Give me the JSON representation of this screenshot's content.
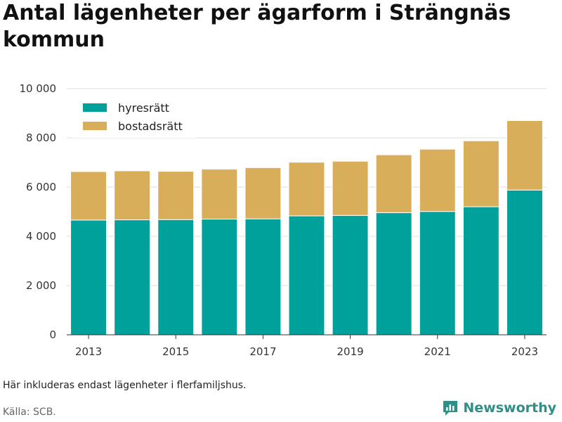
{
  "title": "Antal lägenheter per ägarform i Strängnäs kommun",
  "note": "Här inkluderas endast lägenheter i flerfamiljshus.",
  "source": "Källa: SCB.",
  "brand": "Newsworthy",
  "colors": {
    "hyresratt": "#00a19a",
    "bostadsratt": "#d9ae5a",
    "grid": "#dcdcdc",
    "axis": "#333333",
    "brand": "#2f8f87"
  },
  "chart_data": {
    "type": "bar",
    "stacked": true,
    "x": [
      2013,
      2014,
      2015,
      2016,
      2017,
      2018,
      2019,
      2020,
      2021,
      2022,
      2023
    ],
    "x_tick_labels": [
      "2013",
      "2015",
      "2017",
      "2019",
      "2021",
      "2023"
    ],
    "y_tick_labels": [
      "0",
      "2 000",
      "4 000",
      "6 000",
      "8 000",
      "10 000"
    ],
    "y_ticks": [
      0,
      2000,
      4000,
      6000,
      8000,
      10000
    ],
    "ylim": [
      0,
      10000
    ],
    "grid": true,
    "legend_position": "top-left",
    "series": [
      {
        "name": "hyresrätt",
        "color": "#00a19a",
        "values": [
          4660,
          4670,
          4680,
          4700,
          4710,
          4830,
          4850,
          4960,
          5010,
          5200,
          5880
        ]
      },
      {
        "name": "bostadsrätt",
        "color": "#d9ae5a",
        "values": [
          1970,
          1990,
          1960,
          2030,
          2080,
          2180,
          2200,
          2350,
          2530,
          2680,
          2820
        ]
      }
    ]
  }
}
